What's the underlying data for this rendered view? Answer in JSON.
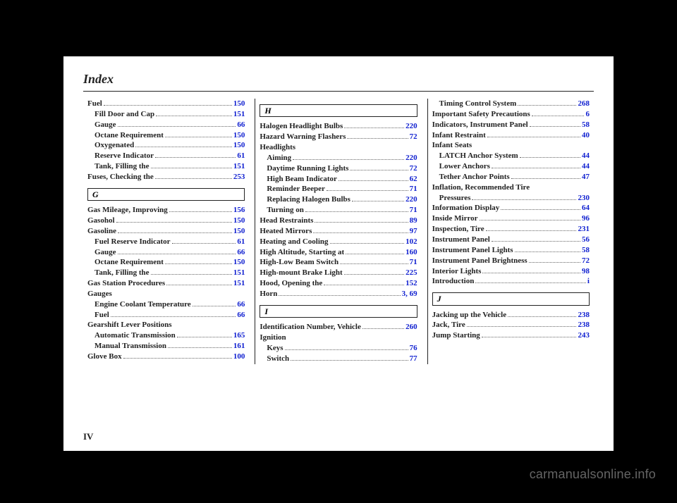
{
  "title": "Index",
  "page_number": "IV",
  "watermark": "carmanualsonline.info",
  "colors": {
    "link": "#1020d0",
    "text": "#222222",
    "bg_page": "#ffffff",
    "bg_outer": "#000000"
  },
  "columns": [
    {
      "sections": [
        {
          "header": null,
          "entries": [
            {
              "label": "Fuel",
              "page": "150",
              "indent": false
            },
            {
              "label": "Fill Door and Cap",
              "page": "151",
              "indent": true
            },
            {
              "label": "Gauge",
              "page": "66",
              "indent": true
            },
            {
              "label": "Octane Requirement",
              "page": "150",
              "indent": true
            },
            {
              "label": "Oxygenated",
              "page": "150",
              "indent": true
            },
            {
              "label": "Reserve Indicator",
              "page": "61",
              "indent": true
            },
            {
              "label": "Tank, Filling the",
              "page": "151",
              "indent": true
            },
            {
              "label": "Fuses, Checking the",
              "page": "253",
              "indent": false
            }
          ]
        },
        {
          "header": "G",
          "entries": [
            {
              "label": "Gas Mileage, Improving",
              "page": "156",
              "indent": false
            },
            {
              "label": "Gasohol",
              "page": "150",
              "indent": false
            },
            {
              "label": "Gasoline",
              "page": "150",
              "indent": false
            },
            {
              "label": "Fuel Reserve Indicator",
              "page": "61",
              "indent": true
            },
            {
              "label": "Gauge",
              "page": "66",
              "indent": true
            },
            {
              "label": "Octane Requirement",
              "page": "150",
              "indent": true
            },
            {
              "label": "Tank, Filling the",
              "page": "151",
              "indent": true
            },
            {
              "label": "Gas Station Procedures",
              "page": "151",
              "indent": false
            },
            {
              "label": "Gauges",
              "page": "",
              "indent": false,
              "nopage": true
            },
            {
              "label": "Engine Coolant Temperature",
              "page": "66",
              "indent": true
            },
            {
              "label": "Fuel",
              "page": "66",
              "indent": true
            },
            {
              "label": "Gearshift Lever Positions",
              "page": "",
              "indent": false,
              "nopage": true
            },
            {
              "label": "Automatic Transmission",
              "page": "165",
              "indent": true
            },
            {
              "label": "Manual Transmission",
              "page": "161",
              "indent": true
            },
            {
              "label": "Glove Box",
              "page": "100",
              "indent": false
            }
          ]
        }
      ]
    },
    {
      "sections": [
        {
          "header": "H",
          "entries": [
            {
              "label": "Halogen Headlight Bulbs",
              "page": "220",
              "indent": false
            },
            {
              "label": "Hazard Warning Flashers",
              "page": "72",
              "indent": false
            },
            {
              "label": "Headlights",
              "page": "",
              "indent": false,
              "nopage": true
            },
            {
              "label": "Aiming",
              "page": "220",
              "indent": true
            },
            {
              "label": "Daytime Running Lights",
              "page": "72",
              "indent": true
            },
            {
              "label": "High Beam Indicator",
              "page": "62",
              "indent": true
            },
            {
              "label": "Reminder Beeper",
              "page": "71",
              "indent": true
            },
            {
              "label": "Replacing Halogen Bulbs",
              "page": "220",
              "indent": true
            },
            {
              "label": "Turning on",
              "page": "71",
              "indent": true
            },
            {
              "label": "Head Restraints",
              "page": "89",
              "indent": false
            },
            {
              "label": "Heated Mirrors",
              "page": "97",
              "indent": false
            },
            {
              "label": "Heating and Cooling",
              "page": "102",
              "indent": false
            },
            {
              "label": "High Altitude, Starting at",
              "page": "160",
              "indent": false
            },
            {
              "label": "High-Low Beam Switch",
              "page": "71",
              "indent": false
            },
            {
              "label": "High-mount Brake Light",
              "page": "225",
              "indent": false
            },
            {
              "label": "Hood, Opening the",
              "page": "152",
              "indent": false
            },
            {
              "label": "Horn",
              "page": "3, 69",
              "indent": false
            }
          ]
        },
        {
          "header": "I",
          "entries": [
            {
              "label": "Identification Number, Vehicle",
              "page": "260",
              "indent": false
            },
            {
              "label": "Ignition",
              "page": "",
              "indent": false,
              "nopage": true
            },
            {
              "label": "Keys",
              "page": "76",
              "indent": true
            },
            {
              "label": "Switch",
              "page": "77",
              "indent": true
            }
          ]
        }
      ]
    },
    {
      "sections": [
        {
          "header": null,
          "entries": [
            {
              "label": "Timing Control System",
              "page": "268",
              "indent": true
            },
            {
              "label": "Important Safety Precautions",
              "page": "6",
              "indent": false
            },
            {
              "label": "Indicators, Instrument Panel",
              "page": "58",
              "indent": false
            },
            {
              "label": "Infant Restraint",
              "page": "40",
              "indent": false
            },
            {
              "label": "Infant Seats",
              "page": "",
              "indent": false,
              "nopage": true
            },
            {
              "label": "LATCH Anchor System",
              "page": "44",
              "indent": true
            },
            {
              "label": "Lower Anchors",
              "page": "44",
              "indent": true
            },
            {
              "label": "Tether Anchor Points",
              "page": "47",
              "indent": true
            },
            {
              "label": "Inflation, Recommended Tire",
              "page": "",
              "indent": false,
              "nopage": true
            },
            {
              "label": "Pressures",
              "page": "230",
              "indent": true
            },
            {
              "label": "Information Display",
              "page": "64",
              "indent": false
            },
            {
              "label": "Inside Mirror",
              "page": "96",
              "indent": false
            },
            {
              "label": "Inspection, Tire",
              "page": "231",
              "indent": false
            },
            {
              "label": "Instrument Panel",
              "page": "56",
              "indent": false
            },
            {
              "label": "Instrument Panel Lights",
              "page": "58",
              "indent": false
            },
            {
              "label": "Instrument Panel Brightness",
              "page": "72",
              "indent": false
            },
            {
              "label": "Interior Lights",
              "page": "98",
              "indent": false
            },
            {
              "label": "Introduction",
              "page": "i",
              "indent": false
            }
          ]
        },
        {
          "header": "J",
          "entries": [
            {
              "label": "Jacking up the Vehicle",
              "page": "238",
              "indent": false
            },
            {
              "label": "Jack, Tire",
              "page": "238",
              "indent": false
            },
            {
              "label": "Jump Starting",
              "page": "243",
              "indent": false
            }
          ]
        }
      ]
    }
  ]
}
